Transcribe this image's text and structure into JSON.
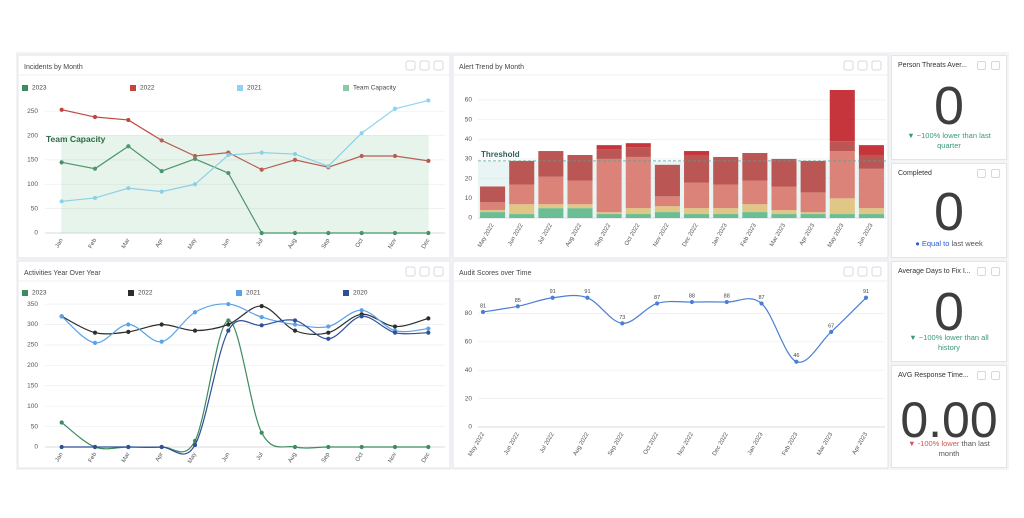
{
  "chart_data": [
    {
      "type": "line",
      "title": "Incidents by Month",
      "categories": [
        "Jan",
        "Feb",
        "Mar",
        "Apr",
        "May",
        "Jun",
        "Jul",
        "Aug",
        "Sep",
        "Oct",
        "Nov",
        "Dec"
      ],
      "series": [
        {
          "name": "2023",
          "color": "#3d8b5f",
          "values": [
            145,
            132,
            178,
            127,
            152,
            123,
            0,
            0,
            0,
            0,
            0,
            0
          ]
        },
        {
          "name": "2022",
          "color": "#c0463f",
          "values": [
            253,
            238,
            232,
            190,
            158,
            165,
            130,
            150,
            135,
            158,
            158,
            148
          ]
        },
        {
          "name": "2021",
          "color": "#8fd3f3",
          "values": [
            65,
            72,
            92,
            85,
            100,
            160,
            165,
            162,
            137,
            205,
            255,
            272
          ]
        },
        {
          "name": "Team Capacity",
          "color": "#8cc9a2",
          "area": true,
          "values": [
            200,
            200,
            200,
            200,
            200,
            200,
            200,
            200,
            200,
            200,
            200,
            200
          ]
        }
      ],
      "annotation": "Team Capacity",
      "ylim": [
        0,
        275
      ],
      "yticks": [
        0,
        50,
        100,
        150,
        200,
        250
      ],
      "grid": true,
      "smooth": false
    },
    {
      "type": "bar",
      "title": "Alert Trend by Month",
      "stacked": true,
      "categories": [
        "May 2022",
        "Jun 2022",
        "Jul 2022",
        "Aug 2022",
        "Sep 2022",
        "Oct 2022",
        "Nov 2022",
        "Dec 2022",
        "Jan 2023",
        "Feb 2023",
        "Mar 2023",
        "Apr 2023",
        "May 2023",
        "Jun 2023"
      ],
      "series": [
        {
          "color": "#5fb98b",
          "values": [
            3,
            2,
            5,
            5,
            2,
            2,
            3,
            2,
            2,
            3,
            2,
            2,
            2,
            2
          ]
        },
        {
          "color": "#dfc27c",
          "values": [
            1,
            5,
            2,
            2,
            1,
            3,
            3,
            3,
            3,
            4,
            2,
            1,
            8,
            3
          ]
        },
        {
          "color": "#d9786e",
          "values": [
            4,
            10,
            14,
            12,
            27,
            26,
            5,
            13,
            12,
            12,
            12,
            10,
            24,
            20
          ]
        },
        {
          "color": "#b54845",
          "values": [
            8,
            12,
            13,
            13,
            5,
            5,
            16,
            14,
            14,
            14,
            14,
            16,
            5,
            7
          ]
        },
        {
          "color": "#c0242a",
          "values": [
            0,
            0,
            0,
            0,
            2,
            2,
            0,
            2,
            0,
            0,
            0,
            0,
            26,
            5
          ]
        }
      ],
      "threshold": {
        "value": 29,
        "label": "Threshold"
      },
      "ylim": [
        0,
        65
      ],
      "yticks": [
        0,
        10,
        20,
        30,
        40,
        50,
        60
      ],
      "grid": true
    },
    {
      "type": "line",
      "title": "Activities Year Over Year",
      "categories": [
        "Jan",
        "Feb",
        "Mar",
        "Apr",
        "May",
        "Jun",
        "Jul",
        "Aug",
        "Sep",
        "Oct",
        "Nov",
        "Dec"
      ],
      "series": [
        {
          "name": "2023",
          "color": "#3d8b5f",
          "values": [
            60,
            0,
            0,
            0,
            15,
            310,
            35,
            0,
            0,
            0,
            0,
            0
          ]
        },
        {
          "name": "2022",
          "color": "#2b2f2c",
          "values": [
            320,
            280,
            282,
            300,
            285,
            300,
            345,
            285,
            280,
            325,
            295,
            315
          ]
        },
        {
          "name": "2021",
          "color": "#5aa2e8",
          "values": [
            320,
            255,
            300,
            258,
            330,
            350,
            318,
            300,
            295,
            335,
            285,
            290
          ]
        },
        {
          "name": "2020",
          "color": "#2f4f96",
          "values": [
            0,
            0,
            0,
            0,
            5,
            285,
            298,
            310,
            265,
            320,
            280,
            280
          ]
        }
      ],
      "ylim": [
        0,
        360
      ],
      "yticks": [
        0,
        50,
        100,
        150,
        200,
        250,
        300,
        350
      ],
      "grid": true,
      "smooth": true
    },
    {
      "type": "line",
      "title": "Audit Scores over Time",
      "categories": [
        "May 2022",
        "Jun 2022",
        "Jul 2022",
        "Aug 2022",
        "Sep 2022",
        "Oct 2022",
        "Nov 2022",
        "Dec 2022",
        "Jan 2023",
        "Feb 2023",
        "Mar 2023",
        "Apr 2023"
      ],
      "series": [
        {
          "color": "#4a7fd6",
          "values": [
            81,
            85,
            91,
            91,
            73,
            87,
            88,
            88,
            87,
            46,
            67,
            91
          ]
        }
      ],
      "data_labels": true,
      "ylim": [
        0,
        100
      ],
      "yticks": [
        0,
        20,
        40,
        60,
        80
      ],
      "grid": true,
      "smooth": true
    }
  ],
  "kpis": [
    {
      "title": "Person Threats Aver...",
      "value": "0",
      "icon": "▼",
      "change": "~100% lower",
      "comparison": "than last quarter",
      "color": "#3a9a78"
    },
    {
      "title": "Completed",
      "value": "0",
      "icon": "●",
      "change": "Equal to",
      "comparison": "last week",
      "color": "#2a5bd7"
    },
    {
      "title": "Average Days to Fix I...",
      "value": "0",
      "icon": "▼",
      "change": "~100% lower",
      "comparison": "than all history",
      "color": "#3a9a78"
    },
    {
      "title": "AVG Response Time...",
      "value": "0.00",
      "icon": "▼",
      "change": "-100% lower",
      "comparison": "than last month",
      "color": "#d9534f"
    }
  ]
}
